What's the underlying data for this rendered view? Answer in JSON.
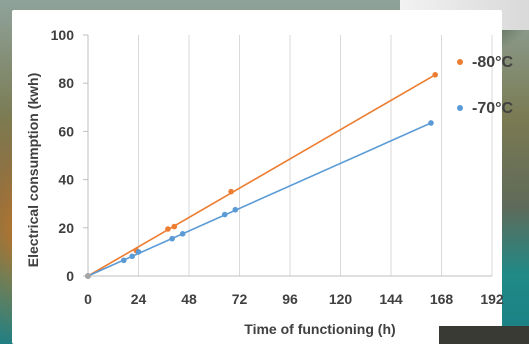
{
  "chart_data": {
    "type": "line",
    "xlabel": "Time of functioning (h)",
    "ylabel": "Electrical consumption (kwh)",
    "xlim": [
      0,
      192
    ],
    "ylim": [
      0,
      100
    ],
    "x_ticks": [
      "0",
      "24",
      "48",
      "72",
      "96",
      "120",
      "144",
      "168",
      "192"
    ],
    "y_ticks": [
      "0",
      "20",
      "40",
      "60",
      "80",
      "100"
    ],
    "grid": "vertical",
    "legend_position": "right",
    "series": [
      {
        "name": "-80°C",
        "color": "#ed7d31",
        "points": [
          [
            0,
            0
          ],
          [
            23,
            10.5
          ],
          [
            38,
            19.5
          ],
          [
            41,
            20.5
          ],
          [
            68,
            35
          ],
          [
            165,
            83.5
          ]
        ]
      },
      {
        "name": "-70°C",
        "color": "#5b9bd5",
        "points": [
          [
            0,
            0
          ],
          [
            17,
            6.5
          ],
          [
            21,
            8.2
          ],
          [
            24,
            10
          ],
          [
            40,
            15.5
          ],
          [
            45,
            17.5
          ],
          [
            65,
            25.5
          ],
          [
            70,
            27.5
          ],
          [
            163,
            63.5
          ]
        ]
      }
    ]
  }
}
